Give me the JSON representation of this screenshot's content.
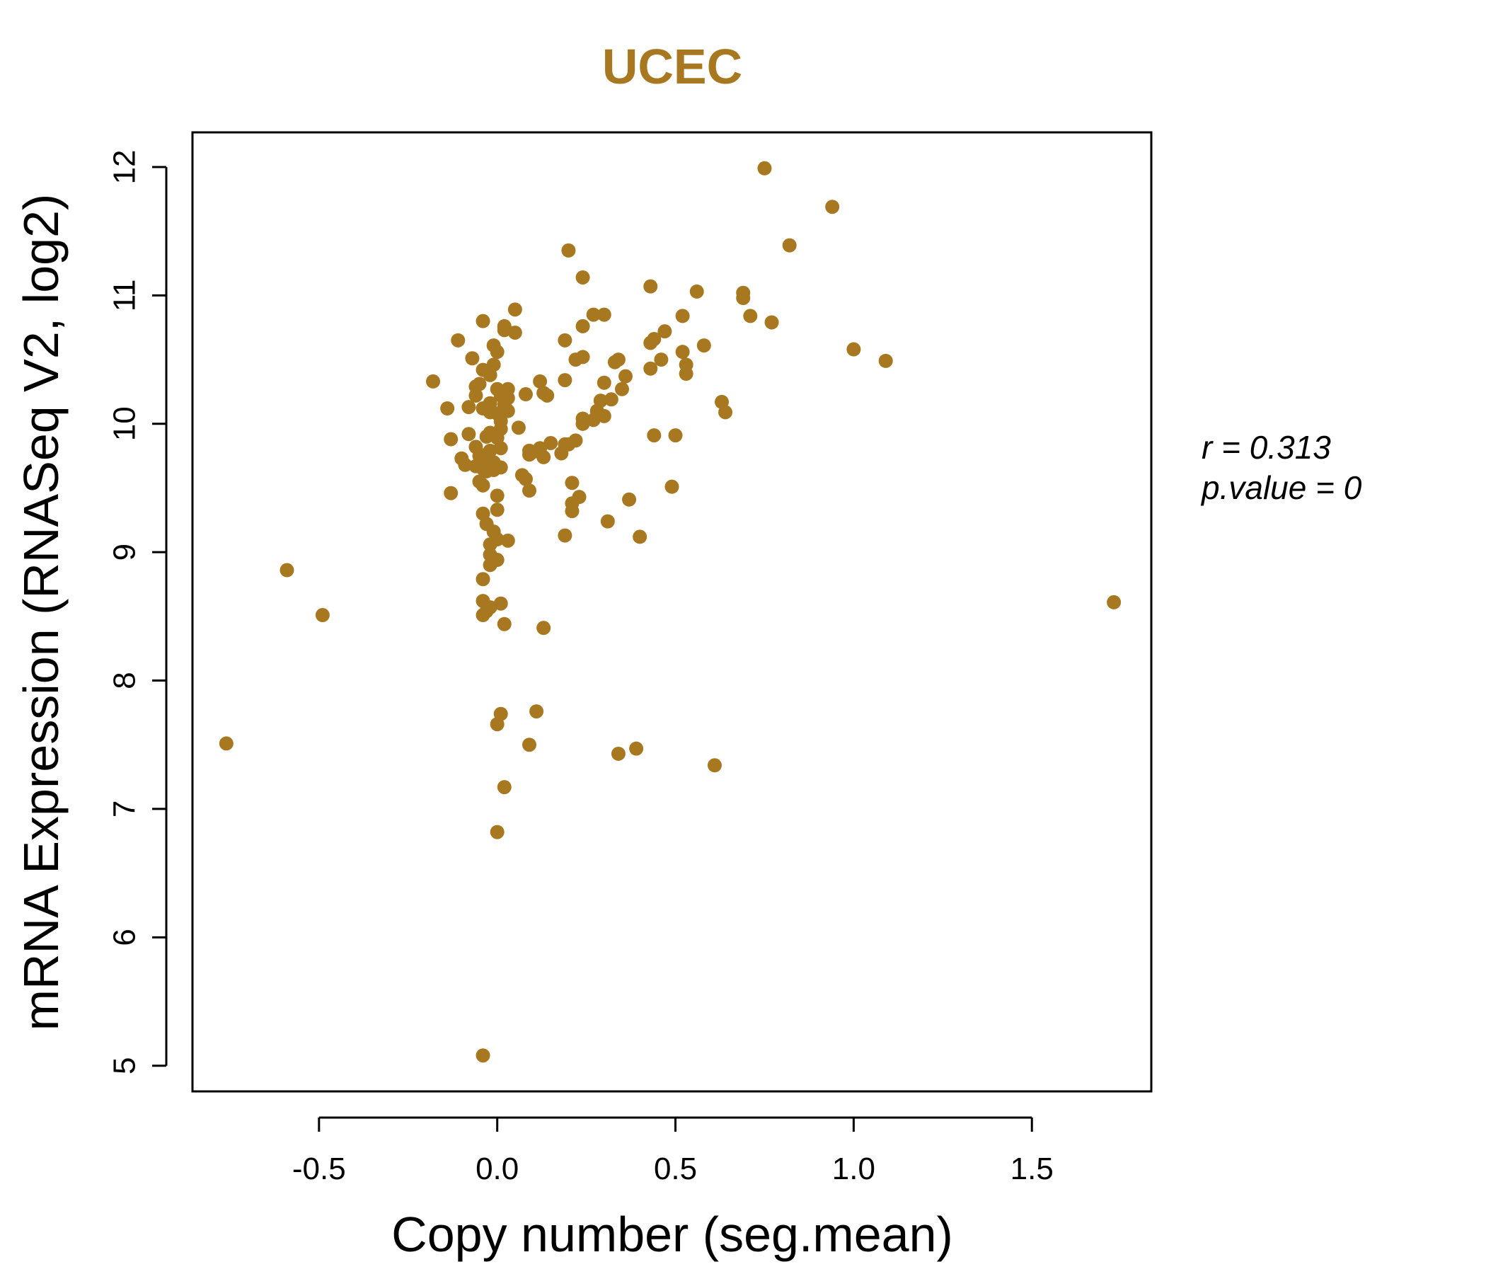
{
  "chart_data": {
    "type": "scatter",
    "title": "UCEC",
    "xlabel": "Copy number (seg.mean)",
    "ylabel": "mRNA Expression (RNASeq V2, log2)",
    "xlim": [
      -0.855,
      1.835
    ],
    "ylim": [
      4.8,
      12.27
    ],
    "xticks": [
      -0.5,
      0.0,
      0.5,
      1.0,
      1.5
    ],
    "xtick_labels": [
      "-0.5",
      "0.0",
      "0.5",
      "1.0",
      "1.5"
    ],
    "yticks": [
      5,
      6,
      7,
      8,
      9,
      10,
      11,
      12
    ],
    "ytick_labels": [
      "5",
      "6",
      "7",
      "8",
      "9",
      "10",
      "11",
      "12"
    ],
    "grid": false,
    "color": "#A87820",
    "annotations": [
      "r = 0.313",
      "p.value = 0"
    ],
    "points": [
      [
        0.75,
        11.99
      ],
      [
        0.94,
        11.69
      ],
      [
        0.82,
        11.39
      ],
      [
        0.2,
        11.35
      ],
      [
        0.24,
        11.14
      ],
      [
        0.43,
        11.07
      ],
      [
        0.56,
        11.03
      ],
      [
        0.69,
        11.02
      ],
      [
        0.69,
        10.98
      ],
      [
        0.05,
        10.89
      ],
      [
        0.27,
        10.85
      ],
      [
        0.3,
        10.85
      ],
      [
        0.52,
        10.84
      ],
      [
        0.71,
        10.84
      ],
      [
        -0.04,
        10.8
      ],
      [
        0.77,
        10.79
      ],
      [
        0.02,
        10.76
      ],
      [
        0.24,
        10.76
      ],
      [
        0.02,
        10.73
      ],
      [
        0.47,
        10.72
      ],
      [
        0.05,
        10.71
      ],
      [
        0.44,
        10.66
      ],
      [
        -0.11,
        10.65
      ],
      [
        0.19,
        10.65
      ],
      [
        0.43,
        10.63
      ],
      [
        -0.01,
        10.61
      ],
      [
        0.58,
        10.61
      ],
      [
        1.0,
        10.58
      ],
      [
        0.0,
        10.56
      ],
      [
        0.52,
        10.56
      ],
      [
        -0.07,
        10.51
      ],
      [
        0.24,
        10.52
      ],
      [
        0.22,
        10.5
      ],
      [
        0.34,
        10.5
      ],
      [
        0.46,
        10.5
      ],
      [
        0.33,
        10.48
      ],
      [
        1.09,
        10.49
      ],
      [
        -0.01,
        10.46
      ],
      [
        0.53,
        10.46
      ],
      [
        -0.04,
        10.42
      ],
      [
        0.43,
        10.43
      ],
      [
        0.53,
        10.39
      ],
      [
        -0.02,
        10.38
      ],
      [
        0.36,
        10.37
      ],
      [
        0.19,
        10.34
      ],
      [
        0.12,
        10.33
      ],
      [
        -0.18,
        10.33
      ],
      [
        0.3,
        10.32
      ],
      [
        -0.05,
        10.31
      ],
      [
        -0.06,
        10.29
      ],
      [
        0.0,
        10.27
      ],
      [
        0.03,
        10.27
      ],
      [
        0.35,
        10.27
      ],
      [
        0.13,
        10.24
      ],
      [
        0.08,
        10.23
      ],
      [
        0.14,
        10.22
      ],
      [
        -0.06,
        10.22
      ],
      [
        0.01,
        10.22
      ],
      [
        0.03,
        10.2
      ],
      [
        0.32,
        10.19
      ],
      [
        0.29,
        10.18
      ],
      [
        0.63,
        10.17
      ],
      [
        -0.02,
        10.16
      ],
      [
        0.02,
        10.15
      ],
      [
        -0.08,
        10.13
      ],
      [
        -0.14,
        10.12
      ],
      [
        -0.04,
        10.12
      ],
      [
        0.03,
        10.1
      ],
      [
        0.28,
        10.1
      ],
      [
        -0.02,
        10.09
      ],
      [
        0.64,
        10.09
      ],
      [
        0.0,
        10.08
      ],
      [
        0.3,
        10.06
      ],
      [
        0.24,
        10.04
      ],
      [
        0.27,
        10.03
      ],
      [
        0.01,
        10.02
      ],
      [
        0.24,
        10.0
      ],
      [
        0.06,
        9.97
      ],
      [
        0.01,
        9.96
      ],
      [
        -0.02,
        9.93
      ],
      [
        -0.08,
        9.92
      ],
      [
        0.44,
        9.91
      ],
      [
        0.5,
        9.91
      ],
      [
        -0.03,
        9.9
      ],
      [
        0.0,
        9.89
      ],
      [
        -0.13,
        9.88
      ],
      [
        0.22,
        9.87
      ],
      [
        0.15,
        9.85
      ],
      [
        0.19,
        9.84
      ],
      [
        0.2,
        9.84
      ],
      [
        -0.06,
        9.82
      ],
      [
        0.01,
        9.81
      ],
      [
        0.12,
        9.81
      ],
      [
        0.09,
        9.79
      ],
      [
        -0.02,
        9.79
      ],
      [
        0.1,
        9.78
      ],
      [
        0.18,
        9.77
      ],
      [
        -0.03,
        9.76
      ],
      [
        0.09,
        9.76
      ],
      [
        -0.05,
        9.75
      ],
      [
        0.13,
        9.74
      ],
      [
        -0.1,
        9.73
      ],
      [
        -0.04,
        9.71
      ],
      [
        -0.01,
        9.7
      ],
      [
        -0.09,
        9.68
      ],
      [
        -0.06,
        9.67
      ],
      [
        0.01,
        9.66
      ],
      [
        -0.04,
        9.65
      ],
      [
        -0.01,
        9.64
      ],
      [
        -0.03,
        9.63
      ],
      [
        0.07,
        9.6
      ],
      [
        0.08,
        9.57
      ],
      [
        -0.05,
        9.55
      ],
      [
        0.21,
        9.54
      ],
      [
        -0.04,
        9.52
      ],
      [
        0.49,
        9.51
      ],
      [
        0.09,
        9.48
      ],
      [
        -0.13,
        9.46
      ],
      [
        0.0,
        9.44
      ],
      [
        0.23,
        9.43
      ],
      [
        0.37,
        9.41
      ],
      [
        0.21,
        9.38
      ],
      [
        0.0,
        9.33
      ],
      [
        0.21,
        9.32
      ],
      [
        -0.04,
        9.3
      ],
      [
        0.31,
        9.24
      ],
      [
        -0.03,
        9.22
      ],
      [
        -0.01,
        9.16
      ],
      [
        0.19,
        9.13
      ],
      [
        0.4,
        9.12
      ],
      [
        0.0,
        9.1
      ],
      [
        0.03,
        9.09
      ],
      [
        -0.02,
        9.06
      ],
      [
        -0.02,
        8.98
      ],
      [
        0.0,
        8.94
      ],
      [
        -0.02,
        8.9
      ],
      [
        -0.59,
        8.86
      ],
      [
        -0.04,
        8.79
      ],
      [
        1.73,
        8.61
      ],
      [
        -0.04,
        8.62
      ],
      [
        0.01,
        8.6
      ],
      [
        -0.02,
        8.57
      ],
      [
        -0.03,
        8.54
      ],
      [
        -0.04,
        8.51
      ],
      [
        -0.49,
        8.51
      ],
      [
        0.02,
        8.44
      ],
      [
        0.13,
        8.41
      ],
      [
        0.11,
        7.76
      ],
      [
        0.01,
        7.74
      ],
      [
        0.0,
        7.66
      ],
      [
        -0.76,
        7.51
      ],
      [
        0.09,
        7.5
      ],
      [
        0.39,
        7.47
      ],
      [
        0.34,
        7.43
      ],
      [
        0.61,
        7.34
      ],
      [
        0.02,
        7.17
      ],
      [
        0.0,
        6.82
      ],
      [
        -0.04,
        5.08
      ]
    ]
  }
}
